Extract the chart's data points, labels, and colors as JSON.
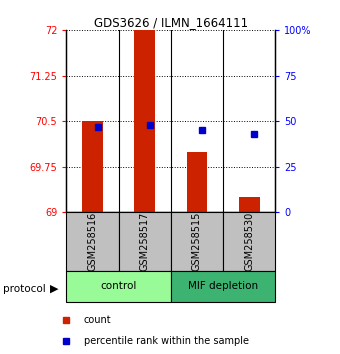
{
  "title": "GDS3626 / ILMN_1664111",
  "samples": [
    "GSM258516",
    "GSM258517",
    "GSM258515",
    "GSM258530"
  ],
  "red_values": [
    70.5,
    72.0,
    70.0,
    69.25
  ],
  "blue_percentiles": [
    47,
    48,
    45,
    43
  ],
  "ylim_left": [
    69,
    72
  ],
  "yticks_left": [
    69,
    69.75,
    70.5,
    71.25,
    72
  ],
  "ylim_right": [
    0,
    100
  ],
  "yticks_right": [
    0,
    25,
    50,
    75,
    100
  ],
  "yticks_right_labels": [
    "0",
    "25",
    "50",
    "75",
    "100%"
  ],
  "bar_color": "#CC2200",
  "dot_color": "#0000CC",
  "bar_width": 0.4,
  "bar_base": 69,
  "sample_label_bg": "#C0C0C0",
  "ctrl_color": "#98FB98",
  "mif_color": "#3CB371",
  "title_fontsize": 8.5,
  "tick_fontsize": 7,
  "label_fontsize": 7,
  "legend_fontsize": 7
}
